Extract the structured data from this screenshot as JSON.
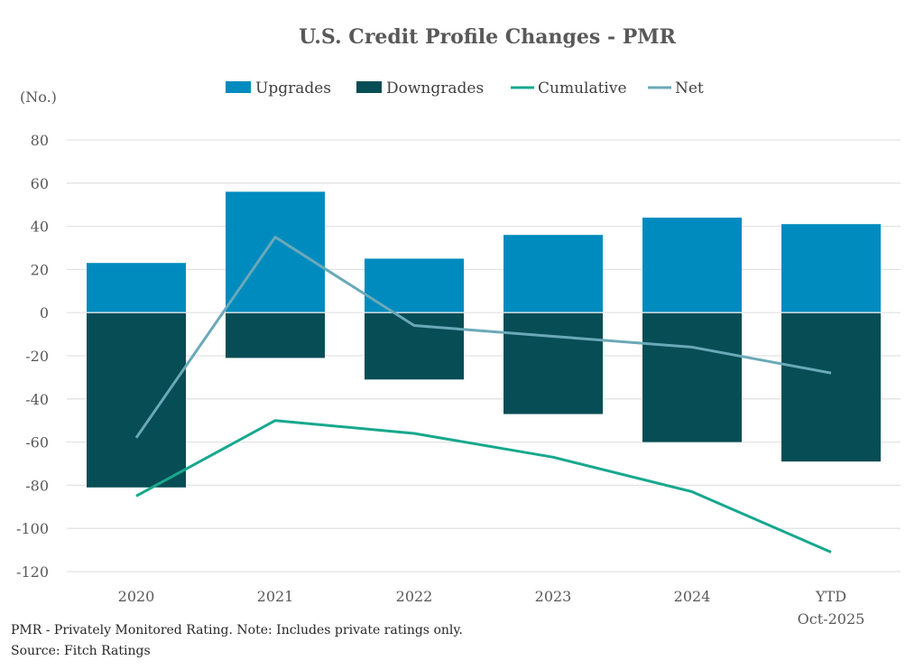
{
  "chart_data": {
    "type": "bar",
    "title": "U.S. Credit Profile Changes - PMR",
    "ylabel": "(No.)",
    "xlabel": "",
    "categories": [
      "2020",
      "2021",
      "2022",
      "2023",
      "2024",
      "YTD\nOct-2025"
    ],
    "category_lines": [
      [
        "2020"
      ],
      [
        "2021"
      ],
      [
        "2022"
      ],
      [
        "2023"
      ],
      [
        "2024"
      ],
      [
        "YTD",
        "Oct-2025"
      ]
    ],
    "series": [
      {
        "name": "Upgrades",
        "kind": "bar",
        "color": "#008bbf",
        "values": [
          23,
          56,
          25,
          36,
          44,
          41
        ]
      },
      {
        "name": "Downgrades",
        "kind": "bar",
        "color": "#074d55",
        "values": [
          -81,
          -21,
          -31,
          -47,
          -60,
          -69
        ]
      },
      {
        "name": "Cumulative",
        "kind": "line",
        "color": "#17a88e",
        "values": [
          -85,
          -50,
          -56,
          -67,
          -83,
          -111
        ]
      },
      {
        "name": "Net",
        "kind": "line",
        "color": "#6aa9b8",
        "values": [
          -58,
          35,
          -6,
          -11,
          -16,
          -28
        ]
      }
    ],
    "ylim": [
      -120,
      80
    ],
    "yticks": [
      80,
      60,
      40,
      20,
      0,
      -20,
      -40,
      -60,
      -80,
      -100,
      -120
    ],
    "grid": true,
    "legend_position": "top-center",
    "notes": [
      "PMR - Privately Monitored Rating. Note: Includes private ratings only.",
      "Source: Fitch Ratings"
    ]
  }
}
